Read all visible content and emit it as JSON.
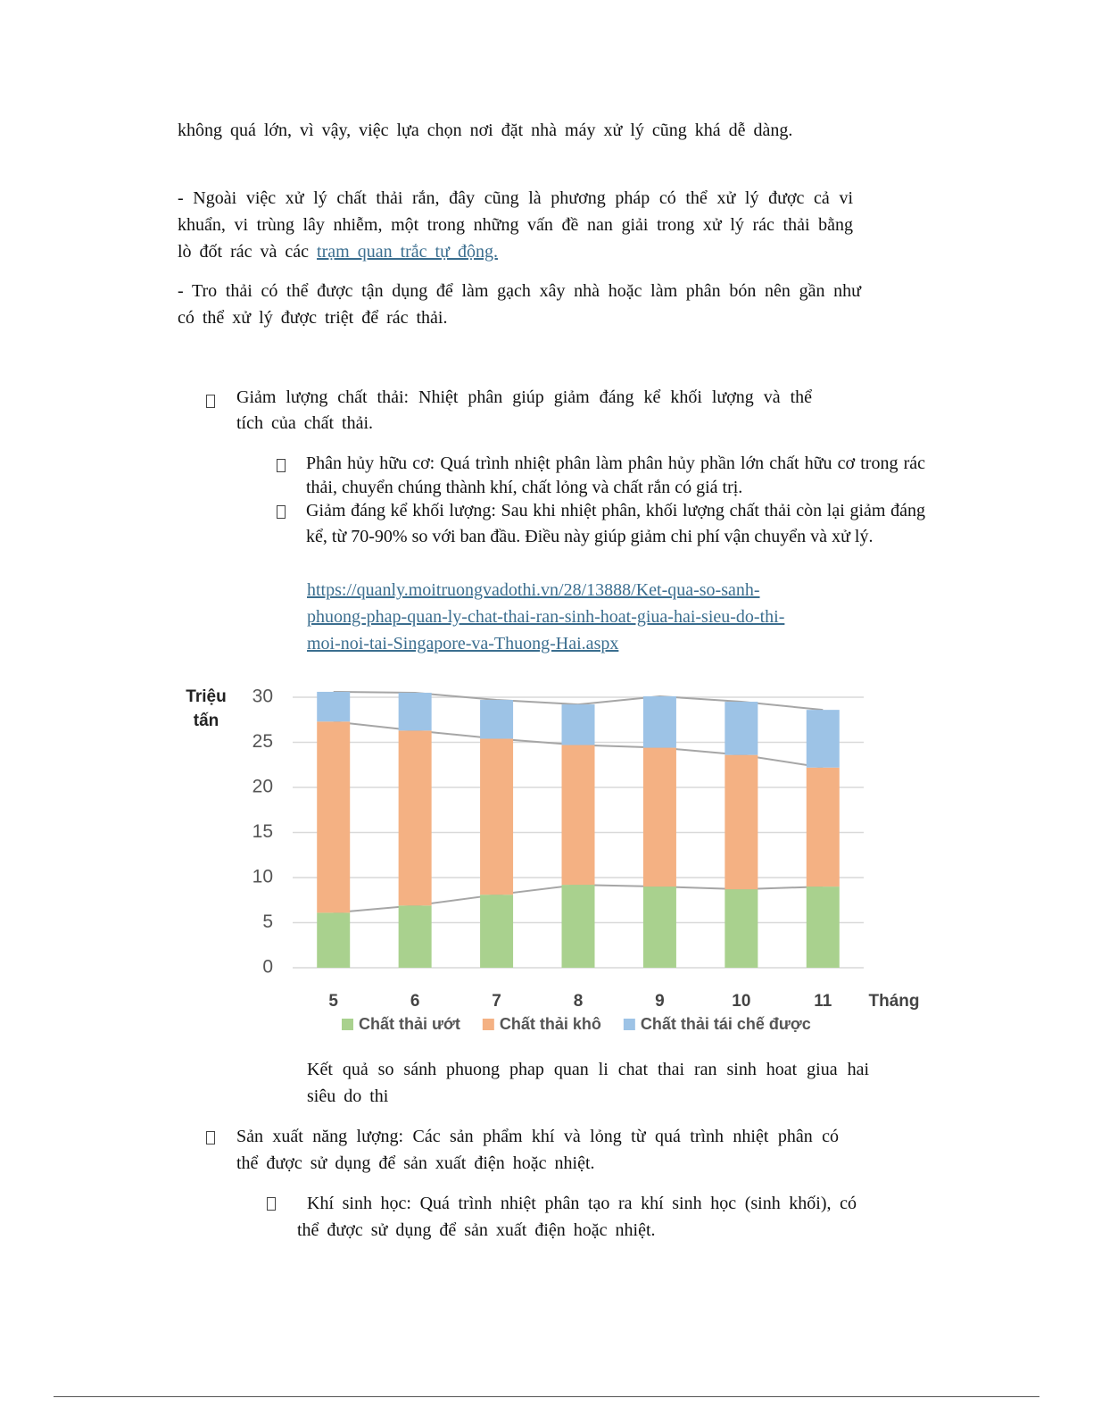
{
  "paragraphs": [
    "không quá lớn, vì vậy, việc lựa chọn nơi đặt nhà máy xử lý cũng khá dễ dàng.",
    "- Ngoài việc xử lý chất thải rắn, đây cũng là phương pháp có thể xử lý được cả vi khuẩn, vi trùng lây nhiễm, một trong những vấn đề nan giải trong xử lý rác thải bằng lò đốt rác và các",
    "- Tro thải có thể được tận dụng để làm gạch xây nhà hoặc làm phân bón nên gần như có thể xử lý được triệt để rác thải."
  ],
  "paragraph_link": "trạm quan trắc tự động.",
  "list_1": {
    "text": "Giảm lượng chất thải: Nhiệt phân giúp giảm đáng kể khối lượng và thể tích của chất thải.",
    "items": [
      "Phân hủy hữu cơ: Quá trình nhiệt phân làm phân hủy phần lớn chất hữu cơ trong rác thải, chuyển chúng thành khí, chất lỏng và chất rắn có giá trị.",
      "Giảm đáng kể khối lượng: Sau khi nhiệt phân, khối lượng chất thải còn lại giảm đáng kể, từ 70-90% so với ban đầu. Điều này giúp giảm chi phí vận chuyển và xử lý."
    ]
  },
  "source_url": "https://quanly.moitruongvadothi.vn/28/13888/Ket-qua-so-sanh-phuong-phap-quan-ly-chat-thai-ran-sinh-hoat-giua-hai-sieu-do-thi-moi-noi-tai-Singapore-va-Thuong-Hai.aspx",
  "chart_data": {
    "type": "stacked_bar",
    "y_label": "Triệu tấn",
    "x_label": "Tháng",
    "categories": [
      "5",
      "6",
      "7",
      "8",
      "9",
      "10",
      "11"
    ],
    "series": [
      {
        "name": "Chất thải ướt",
        "color": "#a9d18e",
        "values": [
          6.1,
          6.9,
          8.1,
          9.2,
          9.0,
          8.7,
          9.0
        ]
      },
      {
        "name": "Chất thải khô",
        "color": "#f4b183",
        "values": [
          21.2,
          19.4,
          17.3,
          15.5,
          15.4,
          14.9,
          13.2
        ]
      },
      {
        "name": "Chất thải tái chế được",
        "color": "#9dc3e6",
        "values": [
          3.3,
          4.2,
          4.3,
          4.5,
          5.7,
          5.9,
          6.4
        ]
      }
    ],
    "ylim": [
      0,
      30
    ],
    "yticks": [
      0,
      5,
      10,
      15,
      20,
      25,
      30
    ],
    "grid": true,
    "legend": "bottom"
  },
  "figure_caption": "Kết quả so sánh phuong phap quan li chat thai ran sinh hoat giua hai siêu do thi",
  "list_2": {
    "text": "Sản xuất năng lượng: Các sản phẩm khí và lỏng từ quá trình nhiệt phân có thể được sử dụng để sản xuất điện hoặc nhiệt.",
    "items": [
      "Khí sinh học: Quá trình nhiệt phân tạo ra khí sinh học (sinh khối), có thể được sử dụng để sản xuất điện hoặc nhiệt."
    ]
  }
}
